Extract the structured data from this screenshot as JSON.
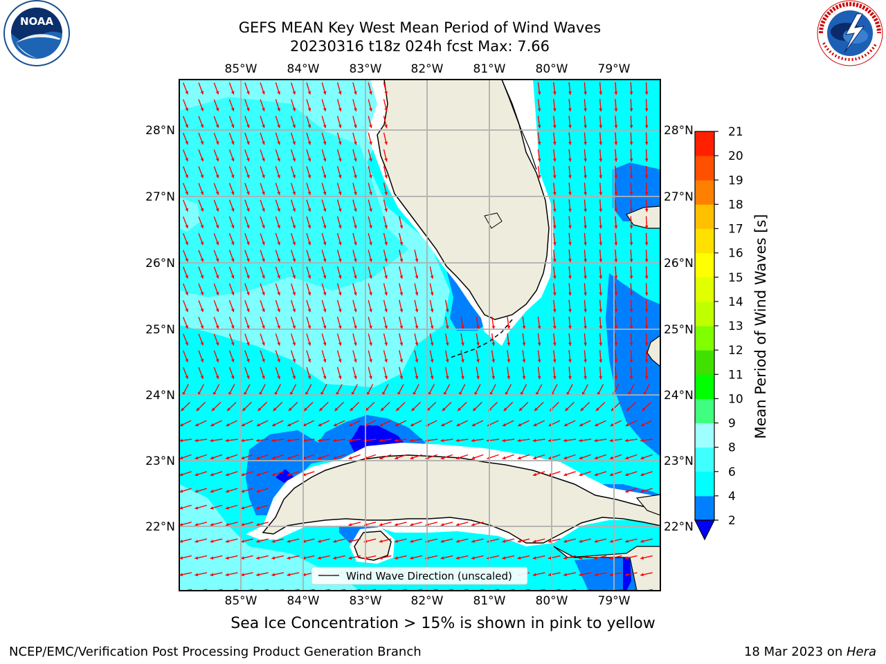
{
  "title": {
    "line1": "GEFS MEAN Key West Mean Period of Wind Waves",
    "line2": "20230316 t18z 024h fcst    Max: 7.66"
  },
  "logos": {
    "left": {
      "icon": "noaa-logo",
      "text": "NOAA",
      "ring_text": "NATIONAL OCEANIC AND ATMOSPHERIC ADMINISTRATION · U.S. DEPARTMENT OF COMMERCE"
    },
    "right": {
      "icon": "nws-logo",
      "ring_text": "NATIONAL WEATHER SERVICE"
    }
  },
  "map": {
    "lon_labels": [
      "85°W",
      "84°W",
      "83°W",
      "82°W",
      "81°W",
      "80°W",
      "79°W"
    ],
    "lat_labels": [
      "28°N",
      "27°N",
      "26°N",
      "25°N",
      "24°N",
      "23°N",
      "22°N"
    ],
    "legend_label": "Wind Wave Direction (unscaled)",
    "colors": {
      "ocean_light": "#7fffff",
      "ocean": "#00ffff",
      "band_2_4": "#0080ff",
      "below_2": "#0000ff",
      "land": "#eeeddd",
      "arrow": "#ff0000",
      "grid": "#b0b0b0"
    }
  },
  "colorbar": {
    "label": "Mean Period of Wind Waves [s]",
    "ticks": [
      "2",
      "4",
      "6",
      "8",
      "9",
      "10",
      "11",
      "12",
      "13",
      "14",
      "15",
      "16",
      "17",
      "18",
      "19",
      "20",
      "21"
    ],
    "colors": [
      "#0080ff",
      "#00ffff",
      "#40ffff",
      "#9fffff",
      "#40ff80",
      "#00ff00",
      "#40e000",
      "#80ff00",
      "#c0ff00",
      "#e0ff00",
      "#ffff00",
      "#ffe000",
      "#ffc000",
      "#ff8000",
      "#ff5000",
      "#ff2000"
    ],
    "extend_color": "#0000ff"
  },
  "ice_note": "Sea Ice Concentration > 15% is shown in pink to yellow",
  "footer": {
    "left": "NCEP/EMC/Verification Post Processing Product Generation Branch",
    "date": "18 Mar 2023 on ",
    "host": "Hera"
  }
}
